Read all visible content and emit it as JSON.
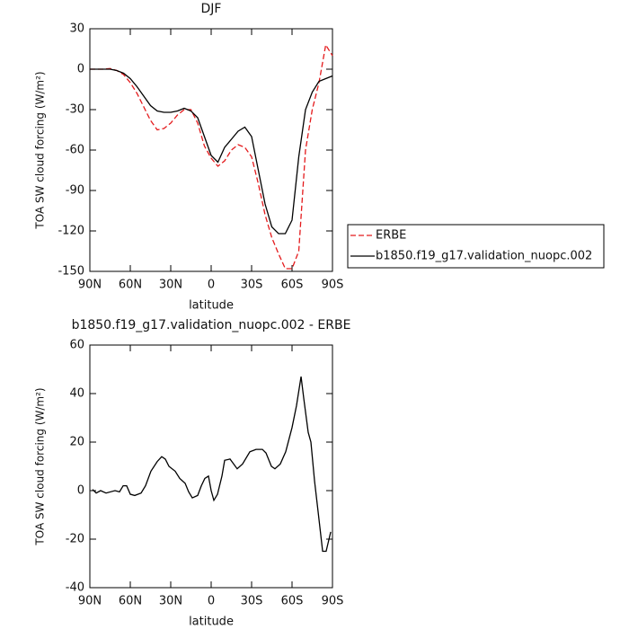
{
  "chart_data": [
    {
      "type": "line",
      "title": "DJF",
      "ylabel": "TOA SW cloud forcing (W/m²)",
      "xlabel": "latitude",
      "x": [
        90,
        85,
        80,
        75,
        70,
        65,
        60,
        55,
        50,
        45,
        40,
        35,
        30,
        25,
        20,
        15,
        10,
        5,
        0,
        -5,
        -10,
        -15,
        -20,
        -25,
        -30,
        -35,
        -40,
        -45,
        -50,
        -55,
        -60,
        -65,
        -70,
        -75,
        -80,
        -85,
        -90
      ],
      "series": [
        {
          "name": "ERBE",
          "color": "#e41a1c",
          "style": "dashed",
          "values": [
            0,
            0,
            0,
            0.5,
            -1,
            -4,
            -10,
            -18,
            -28,
            -38,
            -45,
            -44,
            -40,
            -34,
            -30,
            -30,
            -40,
            -57,
            -66,
            -72,
            -68,
            -60,
            -56,
            -58,
            -65,
            -85,
            -108,
            -125,
            -137,
            -148,
            -148,
            -135,
            -60,
            -30,
            -10,
            18,
            10
          ]
        },
        {
          "name": "b1850.f19_g17.validation_nuopc.002",
          "color": "#000000",
          "style": "solid",
          "values": [
            0,
            0,
            0,
            0,
            -1,
            -3,
            -7,
            -13,
            -20,
            -27,
            -31,
            -32,
            -32,
            -31,
            -29,
            -31,
            -36,
            -50,
            -64,
            -69,
            -58,
            -52,
            -46,
            -43,
            -50,
            -75,
            -100,
            -117,
            -122,
            -122,
            -112,
            -65,
            -30,
            -17,
            -9,
            -7,
            -5
          ]
        }
      ],
      "xlim": [
        90,
        -90
      ],
      "xticks": [
        {
          "value": 90,
          "label": "90N"
        },
        {
          "value": 60,
          "label": "60N"
        },
        {
          "value": 30,
          "label": "30N"
        },
        0,
        {
          "value": -30,
          "label": "30S"
        },
        {
          "value": -60,
          "label": "60S"
        },
        {
          "value": -90,
          "label": "90S"
        }
      ],
      "ylim": [
        -150,
        30
      ],
      "yticks": [
        -150,
        -120,
        -90,
        -60,
        -30,
        0,
        30
      ],
      "legend": "right"
    },
    {
      "type": "line",
      "title": "b1850.f19_g17.validation_nuopc.002 - ERBE",
      "ylabel": "TOA SW cloud forcing (W/m²)",
      "xlabel": "latitude",
      "x": [
        88,
        85.3,
        82,
        78,
        71.3,
        68,
        65.3,
        62.7,
        60,
        56.7,
        52,
        48.7,
        44.7,
        40,
        36.7,
        34,
        31.3,
        26.7,
        23.3,
        19.3,
        16.7,
        14,
        10,
        7.3,
        4.7,
        2,
        0,
        -2,
        -4.7,
        -8,
        -10,
        -14,
        -19.3,
        -23.3,
        -28.7,
        -33.3,
        -38,
        -40.7,
        -44.7,
        -47.3,
        -51.3,
        -55.3,
        -60,
        -63.3,
        -66.7,
        -68.7,
        -72,
        -74,
        -76.7,
        -79.3,
        -82.7,
        -85.3,
        -88.7
      ],
      "series": [
        {
          "color": "#000000",
          "style": "solid",
          "values": [
            0.5,
            -1,
            0,
            -1,
            0,
            -0.5,
            2,
            2,
            -1.5,
            -2,
            -1,
            2,
            8,
            12,
            14,
            13,
            10,
            8,
            5,
            3,
            -0.5,
            -3,
            -2,
            2,
            5,
            6,
            0,
            -4,
            -1.5,
            6,
            12.5,
            13,
            9,
            11,
            16,
            17,
            17,
            15.5,
            10,
            9,
            11,
            16,
            26,
            35,
            47,
            38,
            24,
            20,
            4,
            -8.5,
            -25,
            -25,
            -17
          ]
        }
      ],
      "xlim": [
        90,
        -90
      ],
      "xticks": [
        {
          "value": 90,
          "label": "90N"
        },
        {
          "value": 60,
          "label": "60N"
        },
        {
          "value": 30,
          "label": "30N"
        },
        0,
        {
          "value": -30,
          "label": "30S"
        },
        {
          "value": -60,
          "label": "60S"
        },
        {
          "value": -90,
          "label": "90S"
        }
      ],
      "ylim": [
        -40,
        60
      ],
      "yticks": [
        -40,
        -20,
        0,
        20,
        40,
        60
      ]
    }
  ]
}
